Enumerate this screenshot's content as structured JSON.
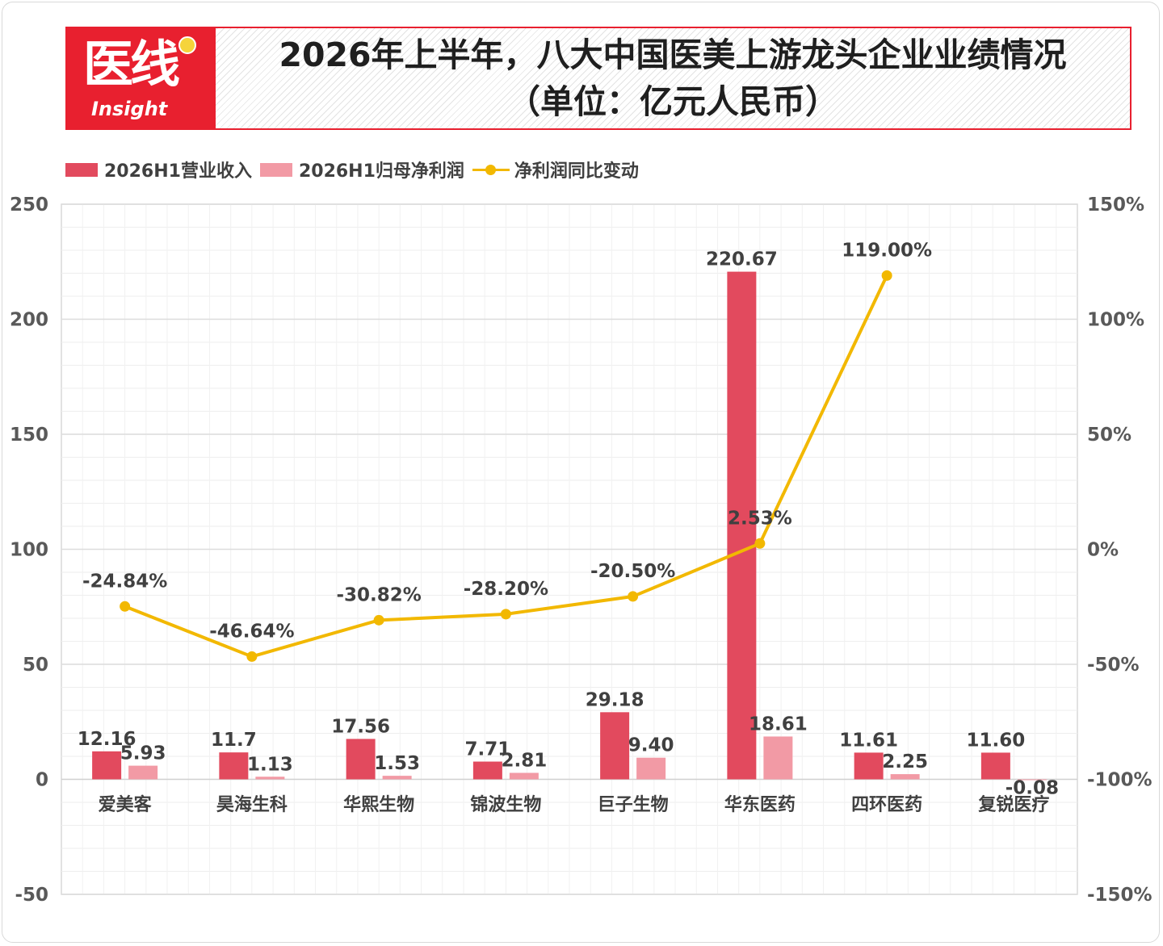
{
  "header": {
    "logo_text": "医线",
    "logo_subtext": "Insight",
    "title_line1": "2026年上半年，八大中国医美上游龙头企业业绩情况",
    "title_line2": "（单位：亿元人民币）"
  },
  "colors": {
    "revenue": "#e24a5e",
    "profit": "#f29aa5",
    "growth": "#f2b800",
    "brand_red": "#e8202f"
  },
  "chart_data": {
    "type": "bar",
    "title": "2026年上半年，八大中国医美上游龙头企业业绩情况（单位：亿元人民币）",
    "categories": [
      "爱美客",
      "昊海生科",
      "华熙生物",
      "锦波生物",
      "巨子生物",
      "华东医药",
      "四环医药",
      "复锐医疗"
    ],
    "series": [
      {
        "name": "2026H1营业收入",
        "type": "bar",
        "axis": "left",
        "values": [
          12.16,
          11.7,
          17.56,
          7.71,
          29.18,
          220.67,
          11.61,
          11.6
        ],
        "labels": [
          "12.16",
          "11.7",
          "17.56",
          "7.71",
          "29.18",
          "220.67",
          "11.61",
          "11.60"
        ]
      },
      {
        "name": "2026H1归母净利润",
        "type": "bar",
        "axis": "left",
        "values": [
          5.93,
          1.13,
          1.53,
          2.81,
          9.4,
          18.61,
          2.25,
          -0.08
        ],
        "labels": [
          "5.93",
          "1.13",
          "1.53",
          "2.81",
          "9.40",
          "18.61",
          "2.25",
          "-0.08"
        ]
      },
      {
        "name": "净利润同比变动",
        "type": "line",
        "axis": "right",
        "values": [
          -24.84,
          -46.64,
          -30.82,
          -28.2,
          -20.5,
          2.53,
          119.0,
          null
        ],
        "labels": [
          "-24.84%",
          "-46.64%",
          "-30.82%",
          "-28.20%",
          "-20.50%",
          "2.53%",
          "119.00%",
          ""
        ]
      }
    ],
    "y_left": {
      "range": [
        -50,
        250
      ],
      "ticks": [
        250,
        200,
        150,
        100,
        50,
        0,
        -50
      ],
      "tick_labels": [
        "250",
        "200",
        "150",
        "100",
        "50",
        "0",
        "-50"
      ]
    },
    "y_right": {
      "range": [
        -150,
        150
      ],
      "ticks": [
        150,
        100,
        50,
        0,
        -50,
        -100,
        -150
      ],
      "tick_labels": [
        "150%",
        "100%",
        "50%",
        "0%",
        "-50%",
        "-100%",
        "-150%"
      ]
    },
    "grid": true,
    "legend_position": "top-left"
  }
}
